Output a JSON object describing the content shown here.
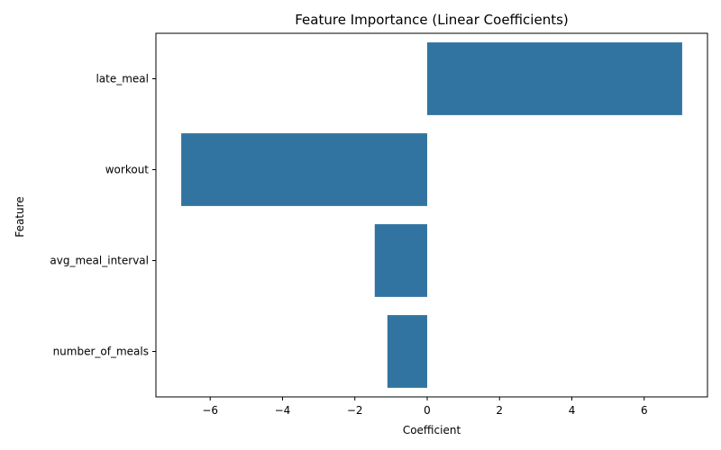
{
  "chart_data": {
    "type": "bar",
    "orientation": "horizontal",
    "title": "Feature Importance (Linear Coefficients)",
    "xlabel": "Coefficient",
    "ylabel": "Feature",
    "categories": [
      "late_meal",
      "workout",
      "avg_meal_interval",
      "number_of_meals"
    ],
    "values": [
      7.05,
      -6.8,
      -1.45,
      -1.1
    ],
    "xlim": [
      -7.5,
      7.75
    ],
    "xticks": [
      -6,
      -4,
      -2,
      0,
      2,
      4,
      6
    ],
    "xtick_labels": [
      "−6",
      "−4",
      "−2",
      "0",
      "2",
      "4",
      "6"
    ],
    "grid": false,
    "legend": "none",
    "bar_color": "#3274a1"
  }
}
